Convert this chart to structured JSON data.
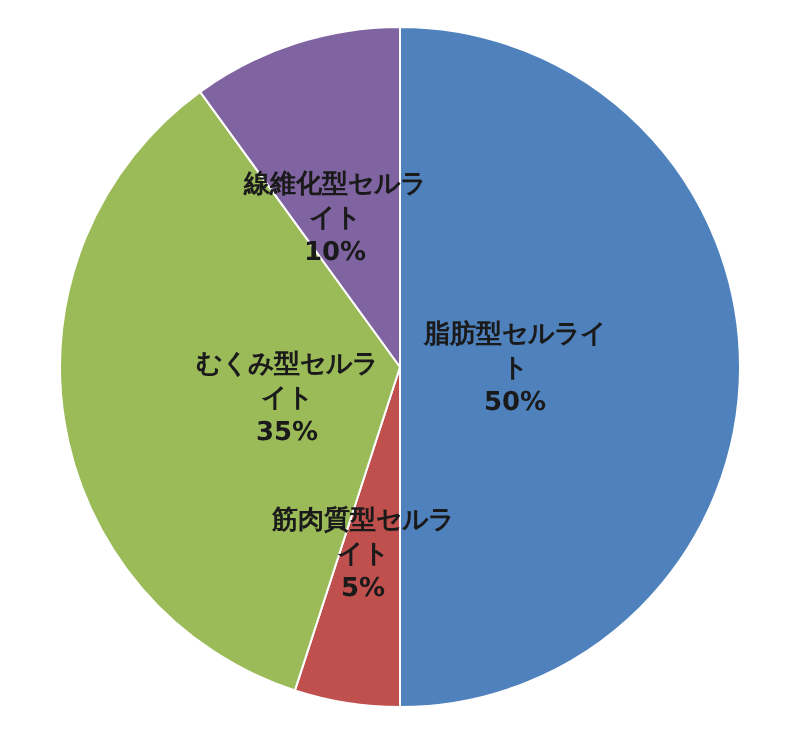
{
  "chart_data": {
    "type": "pie",
    "categories": [
      "脂肪型セルライト",
      "筋肉質型セルライト",
      "むくみ型セルライト",
      "線維化型セルライト"
    ],
    "values": [
      50,
      5,
      35,
      10
    ],
    "colors": [
      "#4f81bd",
      "#c0504d",
      "#9bbb59",
      "#8064a2"
    ],
    "value_labels": [
      "50%",
      "5%",
      "35%",
      "10%"
    ],
    "legend": false
  }
}
